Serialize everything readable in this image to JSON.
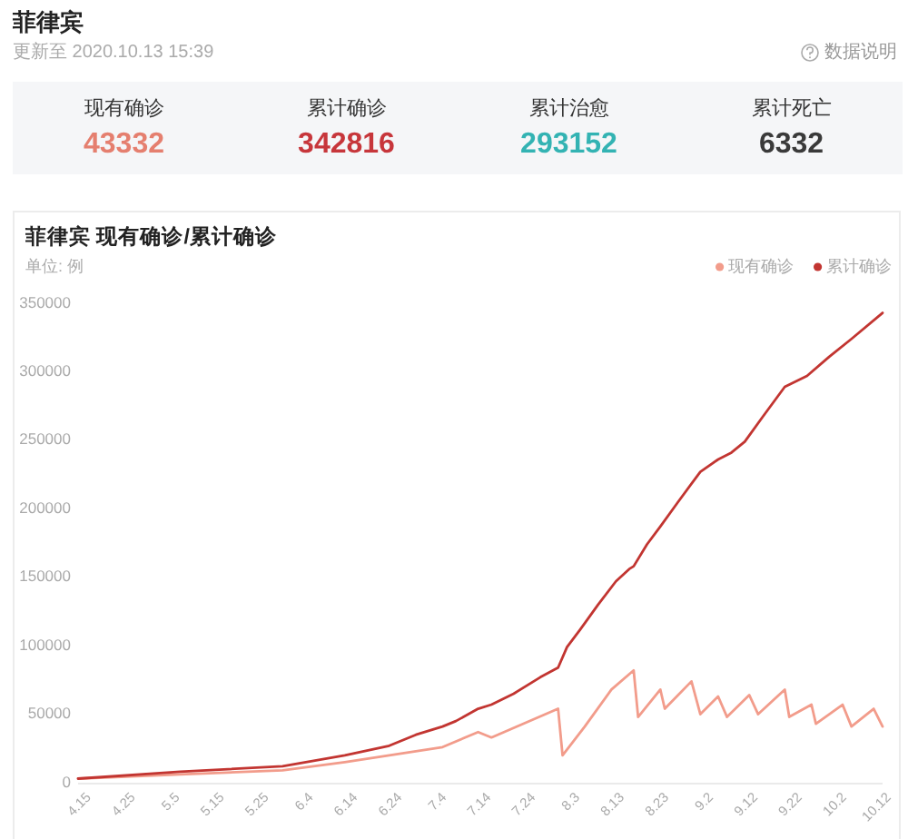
{
  "chart_data": [
    {
      "type": "other",
      "title": "菲律宾",
      "subtitle": "更新至 2020.10.13 15:39",
      "annotations": [
        "数据说明"
      ],
      "categories": [
        "现有确诊",
        "累计确诊",
        "累计治愈",
        "累计死亡"
      ],
      "values": [
        43332,
        342816,
        293152,
        6332
      ],
      "colors": [
        "#e57f6f",
        "#c7363b",
        "#33b3b3",
        "#3a3a3a"
      ],
      "data_labels": true
    },
    {
      "type": "line",
      "title": "菲律宾 现有确诊/累计确诊",
      "ylabel": "单位: 例",
      "legend": "top right",
      "xlim": [
        "--04-15",
        "--10-13"
      ],
      "xticks": [
        {
          "value": "--04-15",
          "label": "4.15"
        },
        {
          "value": "--04-25",
          "label": "4.25"
        },
        {
          "value": "--05-05",
          "label": "5.5"
        },
        {
          "value": "--05-15",
          "label": "5.15"
        },
        {
          "value": "--05-25",
          "label": "5.25"
        },
        {
          "value": "--06-04",
          "label": "6.4"
        },
        {
          "value": "--06-14",
          "label": "6.14"
        },
        {
          "value": "--06-24",
          "label": "6.24"
        },
        {
          "value": "--07-04",
          "label": "7.4"
        },
        {
          "value": "--07-14",
          "label": "7.14"
        },
        {
          "value": "--07-24",
          "label": "7.24"
        },
        {
          "value": "--08-03",
          "label": "8.3"
        },
        {
          "value": "--08-13",
          "label": "8.13"
        },
        {
          "value": "--08-23",
          "label": "8.23"
        },
        {
          "value": "--09-02",
          "label": "9.2"
        },
        {
          "value": "--09-12",
          "label": "9.12"
        },
        {
          "value": "--09-22",
          "label": "9.22"
        },
        {
          "value": "--10-02",
          "label": "10.2"
        },
        {
          "value": "--10-12",
          "label": "10.12"
        }
      ],
      "ylim": [
        0,
        350000
      ],
      "yticks": [
        0,
        50000,
        100000,
        150000,
        200000,
        250000,
        300000,
        350000
      ],
      "series": [
        {
          "name": "现有确诊",
          "color": "#f29c8b",
          "x": [
            "--04-15",
            "--05-08",
            "--05-31",
            "--06-14",
            "--06-24",
            "--06-30",
            "--07-06",
            "--07-14",
            "--07-17",
            "--08-01",
            "--08-02",
            "--08-07",
            "--08-13",
            "--08-18",
            "--08-19",
            "--08-24",
            "--08-25",
            "--08-31",
            "--09-02",
            "--09-06",
            "--09-08",
            "--09-13",
            "--09-15",
            "--09-21",
            "--09-22",
            "--09-27",
            "--09-28",
            "--10-04",
            "--10-06",
            "--10-11",
            "--10-13"
          ],
          "values": [
            3000,
            6000,
            9000,
            15000,
            20000,
            23000,
            26000,
            37000,
            33000,
            54000,
            20000,
            41000,
            68000,
            82000,
            48000,
            68000,
            54000,
            74000,
            50000,
            63000,
            48000,
            64000,
            50000,
            68000,
            48000,
            57000,
            43000,
            57000,
            41000,
            54000,
            41000
          ]
        },
        {
          "name": "累计确诊",
          "color": "#c23531",
          "x": [
            "--04-15",
            "--05-08",
            "--05-31",
            "--06-14",
            "--06-24",
            "--06-30",
            "--07-06",
            "--07-09",
            "--07-14",
            "--07-17",
            "--07-22",
            "--07-28",
            "--08-01",
            "--08-03",
            "--08-06",
            "--08-10",
            "--08-14",
            "--08-17",
            "--08-18",
            "--08-21",
            "--08-24",
            "--08-28",
            "--09-02",
            "--09-06",
            "--09-09",
            "--09-12",
            "--09-16",
            "--09-21",
            "--09-26",
            "--10-01",
            "--10-06",
            "--10-13"
          ],
          "values": [
            3000,
            8000,
            12000,
            20000,
            27000,
            35000,
            41000,
            45000,
            54000,
            57000,
            65000,
            77000,
            84000,
            99000,
            112000,
            130000,
            147000,
            156000,
            158000,
            174000,
            187000,
            205000,
            227000,
            236000,
            241000,
            249000,
            267000,
            289000,
            297000,
            311000,
            324000,
            343000
          ]
        }
      ]
    }
  ]
}
